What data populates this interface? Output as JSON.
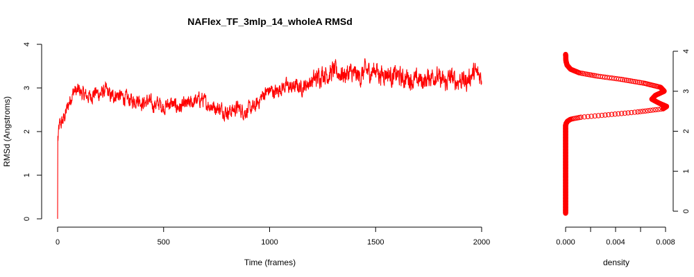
{
  "chart_data": [
    {
      "type": "line",
      "title": "NAFlex_TF_3mlp_14_wholeA RMSd",
      "xlabel": "Time (frames)",
      "ylabel": "RMSd (Angstroms)",
      "xlim": [
        0,
        2000
      ],
      "ylim": [
        0,
        4
      ],
      "xticks": [
        "0",
        "500",
        "1000",
        "1500",
        "2000"
      ],
      "yticks": [
        "0",
        "1",
        "2",
        "3",
        "4"
      ],
      "line_color": "#ff0000",
      "grid": false,
      "series": [
        {
          "x": [
            0,
            2,
            5,
            10,
            20,
            30,
            40,
            50,
            60,
            70,
            80,
            90,
            100,
            120,
            150,
            180,
            200,
            230,
            250,
            280,
            300,
            330,
            350,
            380,
            400,
            430,
            450,
            480,
            500,
            530,
            550,
            580,
            600,
            630,
            650,
            680,
            700,
            720,
            750,
            780,
            800,
            830,
            850,
            880,
            900,
            930,
            950,
            970,
            1000,
            1030,
            1050,
            1080,
            1100,
            1130,
            1150,
            1180,
            1200,
            1230,
            1250,
            1280,
            1300,
            1320,
            1350,
            1380,
            1400,
            1430,
            1450,
            1480,
            1500,
            1520,
            1550,
            1580,
            1600,
            1630,
            1650,
            1680,
            1700,
            1730,
            1750,
            1780,
            1800,
            1830,
            1850,
            1880,
            1900,
            1930,
            1950,
            1970,
            2000
          ],
          "y": [
            0.0,
            1.8,
            2.05,
            2.15,
            2.2,
            2.3,
            2.45,
            2.6,
            2.75,
            2.85,
            2.95,
            2.9,
            2.95,
            2.85,
            2.8,
            2.9,
            2.85,
            2.95,
            2.8,
            2.85,
            2.8,
            2.75,
            2.7,
            2.75,
            2.65,
            2.7,
            2.6,
            2.65,
            2.55,
            2.65,
            2.6,
            2.55,
            2.6,
            2.65,
            2.7,
            2.75,
            2.65,
            2.6,
            2.55,
            2.5,
            2.45,
            2.5,
            2.55,
            2.45,
            2.5,
            2.55,
            2.7,
            2.85,
            2.95,
            2.9,
            3.0,
            3.05,
            3.0,
            3.05,
            3.0,
            3.1,
            3.15,
            3.25,
            3.35,
            3.3,
            3.4,
            3.35,
            3.3,
            3.35,
            3.3,
            3.25,
            3.4,
            3.35,
            3.45,
            3.3,
            3.35,
            3.25,
            3.3,
            3.2,
            3.25,
            3.15,
            3.2,
            3.15,
            3.25,
            3.3,
            3.2,
            3.1,
            3.25,
            3.15,
            3.2,
            3.15,
            3.3,
            3.35,
            3.25
          ]
        }
      ]
    },
    {
      "type": "scatter",
      "title": "",
      "xlabel": "density",
      "ylabel": "",
      "xlim": [
        0,
        0.008
      ],
      "ylim": [
        0,
        4
      ],
      "xticks": [
        "0.000",
        "0.004",
        "0.008"
      ],
      "yticks": [
        "0",
        "1",
        "2",
        "3",
        "4"
      ],
      "marker_color": "#ff0000",
      "grid": false,
      "series": [
        {
          "density": [
            0.0,
            0.0,
            0.0,
            0.0,
            0.0,
            0.0,
            0.0,
            0.0,
            0.0,
            0.0,
            0.0,
            0.0,
            0.0,
            0.0,
            0.0,
            0.0,
            0.0,
            0.0,
            0.0,
            0.0,
            0.0,
            0.0,
            0.0,
            0.0,
            0.0,
            0.0,
            5e-05,
            0.00015,
            0.0004,
            0.0012,
            0.003,
            0.0057,
            0.0078,
            0.0081,
            0.0075,
            0.0069,
            0.0072,
            0.0079,
            0.0076,
            0.0063,
            0.0044,
            0.0025,
            0.0011,
            0.0004,
            0.00012,
            3e-05,
            0.0
          ],
          "value": [
            -0.05,
            0.1,
            0.2,
            0.3,
            0.4,
            0.5,
            0.6,
            0.7,
            0.8,
            0.9,
            1.0,
            1.1,
            1.2,
            1.3,
            1.4,
            1.5,
            1.6,
            1.7,
            1.8,
            1.85,
            1.9,
            1.95,
            2.0,
            2.05,
            2.1,
            2.15,
            2.2,
            2.25,
            2.3,
            2.35,
            2.4,
            2.48,
            2.56,
            2.62,
            2.7,
            2.8,
            2.9,
            3.0,
            3.1,
            3.2,
            3.3,
            3.38,
            3.46,
            3.55,
            3.65,
            3.75,
            3.92
          ]
        }
      ]
    }
  ]
}
